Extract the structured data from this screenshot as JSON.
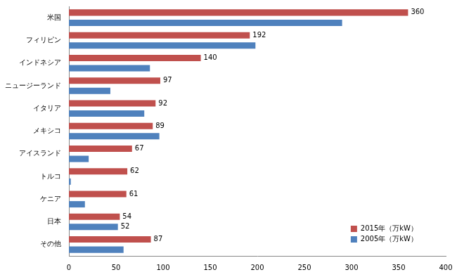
{
  "chart_data": {
    "type": "bar",
    "orientation": "horizontal",
    "categories": [
      "米国",
      "フィリピン",
      "インドネシア",
      "ニュージーランド",
      "イタリア",
      "メキシコ",
      "アイスランド",
      "トルコ",
      "ケニア",
      "日本",
      "その他"
    ],
    "series": [
      {
        "name": "2015年（万kW）",
        "color": "#c0504d",
        "values": [
          360,
          192,
          140,
          97,
          92,
          89,
          67,
          62,
          61,
          54,
          87
        ],
        "data_labels": true
      },
      {
        "name": "2005年（万kW）",
        "color": "#4f81bd",
        "values": [
          290,
          198,
          86,
          44,
          80,
          96,
          21,
          2,
          17,
          52,
          58
        ],
        "value_labels": [
          null,
          null,
          null,
          null,
          null,
          null,
          null,
          null,
          null,
          "52",
          null
        ]
      }
    ],
    "xlim": [
      0,
      400
    ],
    "xticks": [
      0,
      50,
      100,
      150,
      200,
      250,
      300,
      350,
      400
    ],
    "grid": false,
    "legend": "lower right"
  }
}
